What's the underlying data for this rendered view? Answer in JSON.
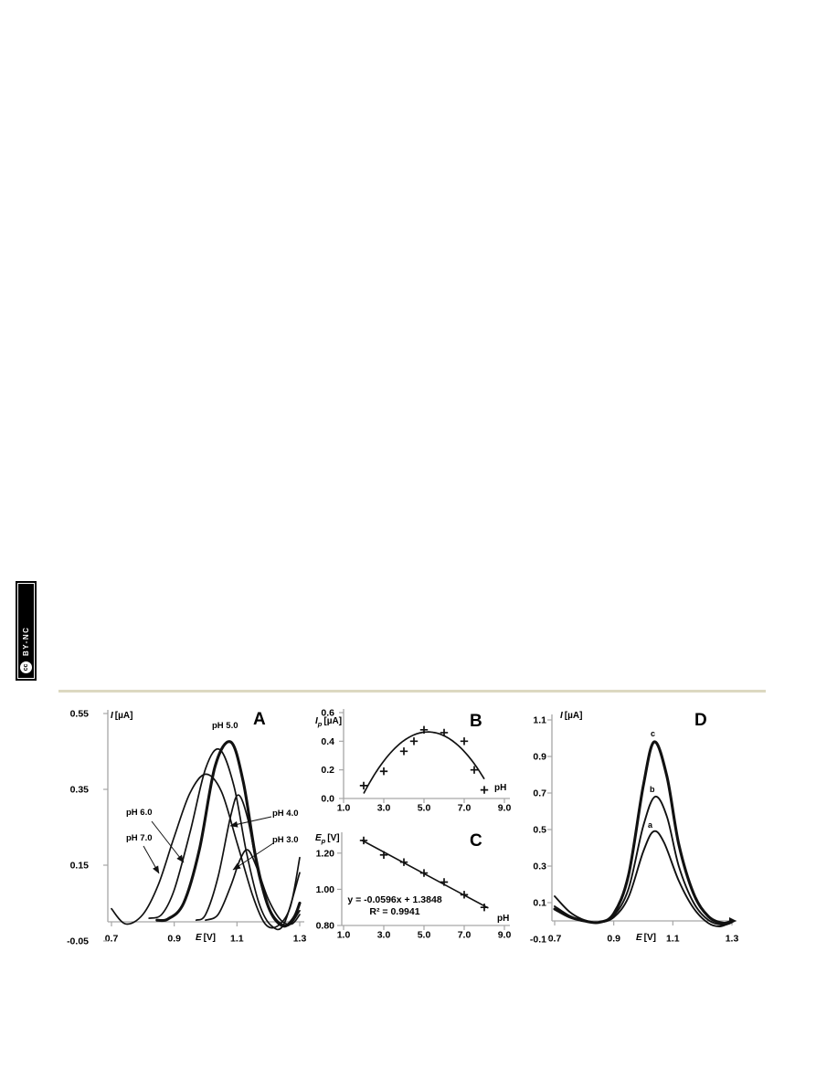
{
  "badge": {
    "license": "BY-NC",
    "logo": "cc"
  },
  "colors": {
    "separator": "#dcd8c1",
    "axis": "#a6a6a6",
    "curve": "#111111",
    "text": "#000000",
    "badge_bg": "#000000",
    "badge_fg": "#ffffff"
  },
  "chart_data": [
    {
      "type": "line",
      "panel": "A",
      "ylabel_sym": "I",
      "ylabel_sub": "",
      "ylabel_unit": "[µA]",
      "xlabel_sym": "E",
      "xlabel_unit": "[V]",
      "xlim": [
        0.7,
        1.3
      ],
      "ylim": [
        -0.05,
        0.55
      ],
      "xticks": [
        {
          "v": 0.7,
          "label": "0.7"
        },
        {
          "v": 0.9,
          "label": "0.9"
        },
        {
          "v": 1.1,
          "label": "1.1"
        },
        {
          "v": 1.3,
          "label": "1.3"
        }
      ],
      "yticks": [
        {
          "v": 0.55,
          "label": "0.55"
        },
        {
          "v": 0.35,
          "label": "0.35"
        },
        {
          "v": 0.15,
          "label": "0.15"
        },
        {
          "v": -0.05,
          "label": "-0.05"
        }
      ],
      "series": [
        {
          "name": "pH 7.0",
          "peak_E": 1.0,
          "peak_I": 0.39,
          "bold": false,
          "points": [
            [
              0.7,
              0.035
            ],
            [
              0.745,
              -0.005
            ],
            [
              0.8,
              0.02
            ],
            [
              0.85,
              0.1
            ],
            [
              0.9,
              0.225
            ],
            [
              0.95,
              0.34
            ],
            [
              1.0,
              0.39
            ],
            [
              1.05,
              0.345
            ],
            [
              1.1,
              0.21
            ],
            [
              1.15,
              0.07
            ],
            [
              1.19,
              -0.005
            ],
            [
              1.23,
              -0.01
            ],
            [
              1.27,
              0.04
            ],
            [
              1.3,
              0.17
            ]
          ]
        },
        {
          "name": "pH 6.0",
          "peak_E": 1.045,
          "peak_I": 0.455,
          "bold": false,
          "points": [
            [
              0.82,
              0.01
            ],
            [
              0.86,
              0.02
            ],
            [
              0.9,
              0.085
            ],
            [
              0.95,
              0.235
            ],
            [
              1.0,
              0.405
            ],
            [
              1.045,
              0.455
            ],
            [
              1.09,
              0.36
            ],
            [
              1.13,
              0.185
            ],
            [
              1.17,
              0.05
            ],
            [
              1.21,
              -0.01
            ],
            [
              1.25,
              -0.005
            ],
            [
              1.3,
              0.13
            ]
          ]
        },
        {
          "name": "pH 5.0",
          "peak_E": 1.08,
          "peak_I": 0.475,
          "bold": true,
          "points": [
            [
              0.845,
              0.005
            ],
            [
              0.88,
              0.008
            ],
            [
              0.93,
              0.05
            ],
            [
              0.98,
              0.19
            ],
            [
              1.03,
              0.41
            ],
            [
              1.08,
              0.475
            ],
            [
              1.12,
              0.37
            ],
            [
              1.16,
              0.17
            ],
            [
              1.2,
              0.04
            ],
            [
              1.245,
              -0.01
            ],
            [
              1.28,
              0.01
            ],
            [
              1.3,
              0.05
            ]
          ]
        },
        {
          "name": "pH 4.0",
          "peak_E": 1.105,
          "peak_I": 0.335,
          "bold": false,
          "points": [
            [
              0.97,
              0.005
            ],
            [
              1.0,
              0.02
            ],
            [
              1.04,
              0.12
            ],
            [
              1.08,
              0.28
            ],
            [
              1.105,
              0.335
            ],
            [
              1.135,
              0.27
            ],
            [
              1.17,
              0.12
            ],
            [
              1.21,
              0.025
            ],
            [
              1.26,
              -0.01
            ],
            [
              1.3,
              0.03
            ]
          ]
        },
        {
          "name": "pH 3.0",
          "peak_E": 1.135,
          "peak_I": 0.19,
          "bold": false,
          "points": [
            [
              1.0,
              0.005
            ],
            [
              1.04,
              0.02
            ],
            [
              1.08,
              0.095
            ],
            [
              1.11,
              0.165
            ],
            [
              1.135,
              0.19
            ],
            [
              1.165,
              0.14
            ],
            [
              1.2,
              0.06
            ],
            [
              1.24,
              0.005
            ],
            [
              1.275,
              -0.005
            ],
            [
              1.3,
              0.02
            ]
          ]
        }
      ]
    },
    {
      "type": "scatter",
      "panel": "B",
      "ylabel_sym": "I",
      "ylabel_sub": "p",
      "ylabel_unit": "[µA]",
      "xlabel": "pH",
      "xlim": [
        1.0,
        9.0
      ],
      "ylim": [
        0.0,
        0.6
      ],
      "xticks": [
        {
          "v": 1,
          "label": "1.0"
        },
        {
          "v": 3,
          "label": "3.0"
        },
        {
          "v": 5,
          "label": "5.0"
        },
        {
          "v": 7,
          "label": "7.0"
        },
        {
          "v": 9,
          "label": "9.0"
        }
      ],
      "yticks": [
        {
          "v": 0.6,
          "label": "0.6"
        },
        {
          "v": 0.4,
          "label": "0.4"
        },
        {
          "v": 0.2,
          "label": "0.2"
        },
        {
          "v": 0.0,
          "label": "0.0"
        }
      ],
      "points": [
        [
          2,
          0.09
        ],
        [
          3,
          0.19
        ],
        [
          4,
          0.33
        ],
        [
          4.5,
          0.4
        ],
        [
          5,
          0.48
        ],
        [
          6,
          0.46
        ],
        [
          7,
          0.4
        ],
        [
          7.5,
          0.2
        ],
        [
          8,
          0.06
        ]
      ],
      "fit": {
        "type": "quadratic",
        "vertex": [
          5.2,
          0.465
        ],
        "a": -0.042,
        "x_range": [
          2.0,
          8.0
        ]
      }
    },
    {
      "type": "scatter",
      "panel": "C",
      "ylabel_sym": "E",
      "ylabel_sub": "p",
      "ylabel_unit": "[V]",
      "xlabel": "pH",
      "xlim": [
        1.0,
        9.0
      ],
      "ylim": [
        0.8,
        1.3
      ],
      "xticks": [
        {
          "v": 1,
          "label": "1.0"
        },
        {
          "v": 3,
          "label": "3.0"
        },
        {
          "v": 5,
          "label": "5.0"
        },
        {
          "v": 7,
          "label": "7.0"
        },
        {
          "v": 9,
          "label": "9.0"
        }
      ],
      "yticks": [
        {
          "v": 1.2,
          "label": "1.20"
        },
        {
          "v": 1.0,
          "label": "1.00"
        },
        {
          "v": 0.8,
          "label": "0.80"
        }
      ],
      "points": [
        [
          2,
          1.27
        ],
        [
          3,
          1.19
        ],
        [
          4,
          1.15
        ],
        [
          5,
          1.09
        ],
        [
          6,
          1.04
        ],
        [
          7,
          0.97
        ],
        [
          8,
          0.9
        ]
      ],
      "fit": {
        "type": "linear",
        "slope": -0.0596,
        "intercept": 1.3848,
        "x_range": [
          1.9,
          8.2
        ]
      },
      "equation": "y = -0.0596x + 1.3848",
      "r2": "R² = 0.9941"
    },
    {
      "type": "line",
      "panel": "D",
      "ylabel_sym": "I",
      "ylabel_sub": "",
      "ylabel_unit": "[µA]",
      "xlabel_sym": "E",
      "xlabel_unit": "[V]",
      "xlim": [
        0.7,
        1.3
      ],
      "ylim": [
        -0.1,
        1.1
      ],
      "xticks": [
        {
          "v": 0.7,
          "label": "0.7"
        },
        {
          "v": 0.9,
          "label": "0.9"
        },
        {
          "v": 1.1,
          "label": "1.1"
        },
        {
          "v": 1.3,
          "label": "1.3"
        }
      ],
      "yticks": [
        {
          "v": 1.1,
          "label": "1.1"
        },
        {
          "v": 0.9,
          "label": "0.9"
        },
        {
          "v": 0.7,
          "label": "0.7"
        },
        {
          "v": 0.5,
          "label": "0.5"
        },
        {
          "v": 0.3,
          "label": "0.3"
        },
        {
          "v": 0.1,
          "label": "0.1"
        },
        {
          "v": -0.1,
          "label": "-0.1"
        }
      ],
      "series": [
        {
          "name": "a",
          "peak_E": 1.035,
          "peak_I": 0.49,
          "bold": false,
          "points": [
            [
              0.7,
              0.135
            ],
            [
              0.75,
              0.05
            ],
            [
              0.8,
              0.005
            ],
            [
              0.85,
              -0.008
            ],
            [
              0.9,
              0.02
            ],
            [
              0.95,
              0.13
            ],
            [
              1.0,
              0.38
            ],
            [
              1.035,
              0.49
            ],
            [
              1.07,
              0.43
            ],
            [
              1.12,
              0.22
            ],
            [
              1.17,
              0.07
            ],
            [
              1.22,
              -0.012
            ],
            [
              1.26,
              -0.03
            ],
            [
              1.3,
              -0.005
            ]
          ]
        },
        {
          "name": "b",
          "peak_E": 1.04,
          "peak_I": 0.68,
          "bold": false,
          "points": [
            [
              0.7,
              0.08
            ],
            [
              0.75,
              0.028
            ],
            [
              0.8,
              0.0
            ],
            [
              0.85,
              -0.008
            ],
            [
              0.9,
              0.03
            ],
            [
              0.95,
              0.175
            ],
            [
              1.0,
              0.52
            ],
            [
              1.04,
              0.68
            ],
            [
              1.08,
              0.57
            ],
            [
              1.12,
              0.3
            ],
            [
              1.17,
              0.1
            ],
            [
              1.22,
              0.005
            ],
            [
              1.27,
              -0.022
            ],
            [
              1.3,
              -0.008
            ]
          ]
        },
        {
          "name": "c",
          "peak_E": 1.037,
          "peak_I": 0.98,
          "bold": true,
          "points": [
            [
              0.7,
              0.065
            ],
            [
              0.75,
              0.022
            ],
            [
              0.8,
              0.0
            ],
            [
              0.85,
              -0.008
            ],
            [
              0.9,
              0.04
            ],
            [
              0.95,
              0.25
            ],
            [
              1.0,
              0.74
            ],
            [
              1.037,
              0.98
            ],
            [
              1.08,
              0.79
            ],
            [
              1.12,
              0.42
            ],
            [
              1.17,
              0.15
            ],
            [
              1.22,
              0.025
            ],
            [
              1.27,
              -0.012
            ],
            [
              1.3,
              0.0
            ]
          ]
        }
      ]
    }
  ]
}
